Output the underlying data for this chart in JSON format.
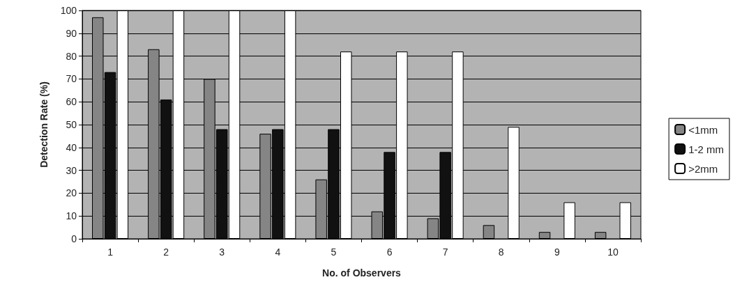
{
  "chart_data": {
    "type": "bar",
    "xlabel": "No. of Observers",
    "ylabel": "Detection Rate (%)",
    "categories": [
      "1",
      "2",
      "3",
      "4",
      "5",
      "6",
      "7",
      "8",
      "9",
      "10"
    ],
    "series": [
      {
        "name": "<1mm",
        "color": "#858585",
        "values": [
          97,
          83,
          70,
          46,
          26,
          12,
          9,
          6,
          3,
          3
        ]
      },
      {
        "name": "1-2 mm",
        "color": "#111111",
        "values": [
          73,
          61,
          48,
          48,
          48,
          38,
          38,
          null,
          null,
          null
        ]
      },
      {
        "name": ">2mm",
        "color": "#ffffff",
        "values": [
          100,
          100,
          100,
          100,
          82,
          82,
          82,
          49,
          16,
          16
        ]
      }
    ],
    "ylim": [
      0,
      100
    ],
    "yticks": [
      0,
      10,
      20,
      30,
      40,
      50,
      60,
      70,
      80,
      90,
      100
    ],
    "grid": "y",
    "legend": "right"
  }
}
